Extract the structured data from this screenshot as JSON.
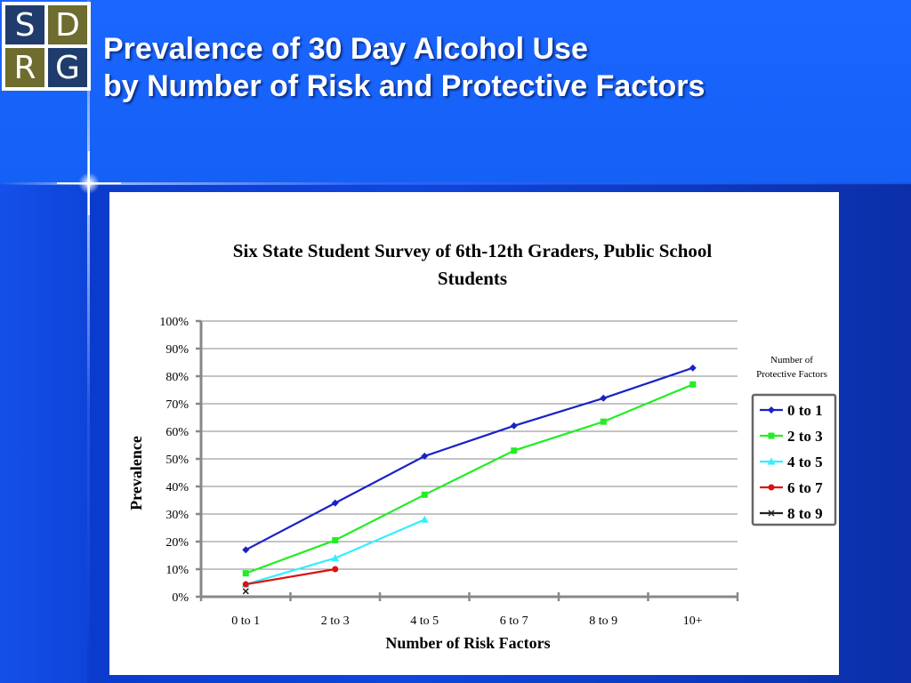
{
  "slide": {
    "title_line1": "Prevalence of 30 Day Alcohol Use",
    "title_line2": "by Number of Risk and Protective Factors"
  },
  "logo": {
    "letters": [
      "S",
      "D",
      "R",
      "G"
    ],
    "colors": [
      "#1f3c6c",
      "#6e6c2e",
      "#6e6c2e",
      "#1f3c6c"
    ]
  },
  "chart_data": {
    "type": "line",
    "title": "Six State Student Survey of 6th-12th Graders, Public School Students",
    "title_lines": [
      "Six State Student Survey of 6th-12th Graders, Public School",
      "Students"
    ],
    "xlabel": "Number of Risk Factors",
    "ylabel": "Prevalence",
    "categories": [
      "0 to 1",
      "2 to 3",
      "4 to 5",
      "6 to 7",
      "8 to 9",
      "10+"
    ],
    "yticks": [
      "0%",
      "10%",
      "20%",
      "30%",
      "40%",
      "50%",
      "60%",
      "70%",
      "80%",
      "90%",
      "100%"
    ],
    "ylim": [
      0,
      100
    ],
    "grid": true,
    "legend_title_lines": [
      "Number of",
      "Protective Factors"
    ],
    "legend_placement": "right",
    "series": [
      {
        "name": "0 to 1",
        "color": "#1a22c4",
        "marker": "diamond",
        "values": [
          17,
          34,
          51,
          62,
          72,
          83
        ]
      },
      {
        "name": "2 to 3",
        "color": "#22ee22",
        "marker": "square",
        "values": [
          8.5,
          20.5,
          37,
          53,
          63.5,
          77
        ]
      },
      {
        "name": "4 to 5",
        "color": "#33eeff",
        "marker": "triangle",
        "values": [
          4.5,
          14,
          28,
          null,
          null,
          null
        ]
      },
      {
        "name": "6 to 7",
        "color": "#dd1111",
        "marker": "circle",
        "values": [
          4.5,
          10,
          null,
          null,
          null,
          null
        ]
      },
      {
        "name": "8 to 9",
        "color": "#222222",
        "marker": "x",
        "values": [
          2,
          null,
          null,
          null,
          null,
          null
        ]
      }
    ]
  }
}
